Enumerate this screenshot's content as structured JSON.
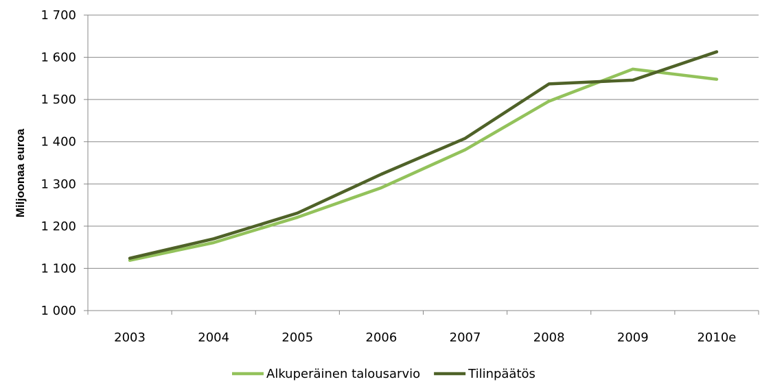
{
  "chart_data": {
    "type": "line",
    "title": "",
    "xlabel": "",
    "ylabel": "Miljoonaa euroa",
    "categories": [
      "2003",
      "2004",
      "2005",
      "2006",
      "2007",
      "2008",
      "2009",
      "2010e"
    ],
    "ylim": [
      1000,
      1700
    ],
    "yticks": [
      1000,
      1100,
      1200,
      1300,
      1400,
      1500,
      1600,
      1700
    ],
    "ytick_labels": [
      "1 000",
      "1 100",
      "1 200",
      "1 300",
      "1 400",
      "1 500",
      "1 600",
      "1 700"
    ],
    "grid": "horizontal",
    "legend_position": "bottom",
    "series": [
      {
        "name": "Alkuperäinen talousarvio",
        "color": "#93c25b",
        "values": [
          1119,
          1161,
          1221,
          1291,
          1381,
          1496,
          1572,
          1548
        ]
      },
      {
        "name": "Tilinpäätös",
        "color": "#4f6228",
        "values": [
          1124,
          1170,
          1231,
          1323,
          1408,
          1537,
          1546,
          1613
        ]
      }
    ]
  }
}
